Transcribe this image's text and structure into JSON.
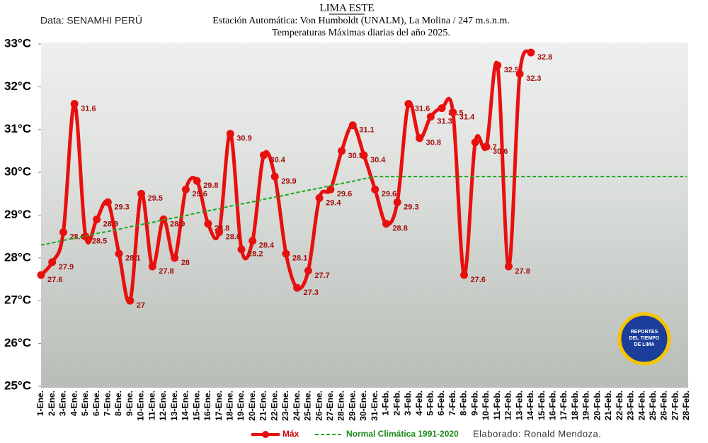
{
  "chart_data": {
    "type": "line",
    "title": "LIMA ESTE",
    "subtitle": [
      "Estación Automática: Von Humboldt (UNALM), La Molina / 247 m.s.n.m.",
      "Temperaturas Máximas diarias del año 2025."
    ],
    "source": "Data: SENAMHI PERÚ",
    "credit": "Elaborado: Ronald Mendoza.",
    "logo": [
      "REPORTES",
      "DEL TIEMPO",
      "DE LIMA"
    ],
    "categories": [
      "1-Ene.",
      "2-Ene.",
      "3-Ene.",
      "4-Ene.",
      "5-Ene.",
      "6-Ene.",
      "7-Ene.",
      "8-Ene.",
      "9-Ene.",
      "10-Ene.",
      "11-Ene.",
      "12-Ene.",
      "13-Ene.",
      "14-Ene.",
      "15-Ene.",
      "16-Ene.",
      "17-Ene.",
      "18-Ene.",
      "19-Ene.",
      "20-Ene.",
      "21-Ene.",
      "22-Ene.",
      "23-Ene.",
      "24-Ene.",
      "25-Ene.",
      "26-Ene.",
      "27-Ene.",
      "28-Ene.",
      "29-Ene.",
      "30-Ene.",
      "31-Ene.",
      "1-Feb.",
      "2-Feb.",
      "3-Feb.",
      "4-Feb.",
      "5-Feb.",
      "6-Feb.",
      "7-Feb.",
      "8-Feb.",
      "9-Feb.",
      "10-Feb.",
      "11-Feb.",
      "12-Feb.",
      "13-Feb.",
      "14-Feb.",
      "15-Feb.",
      "16-Feb.",
      "17-Feb.",
      "18-Feb.",
      "19-Feb.",
      "20-Feb.",
      "21-Feb.",
      "22-Feb.",
      "23-Feb.",
      "24-Feb.",
      "25-Feb.",
      "26-Feb.",
      "27-Feb.",
      "28-Feb."
    ],
    "series": [
      {
        "name": "Máx",
        "color": "#e8100f",
        "markers": true,
        "data_labels": true,
        "values": [
          27.6,
          27.9,
          28.6,
          31.6,
          28.5,
          28.9,
          29.3,
          28.1,
          27,
          29.5,
          27.8,
          28.9,
          28,
          29.6,
          29.8,
          28.8,
          28.6,
          30.9,
          28.2,
          28.4,
          30.4,
          29.9,
          28.1,
          27.3,
          27.7,
          29.4,
          29.6,
          30.5,
          31.1,
          30.4,
          29.6,
          28.8,
          29.3,
          31.6,
          30.8,
          31.3,
          31.5,
          31.4,
          27.6,
          30.7,
          30.6,
          32.5,
          27.8,
          32.3,
          32.8,
          null,
          null,
          null,
          null,
          null,
          null,
          null,
          null,
          null,
          null,
          null,
          null,
          null,
          null
        ]
      },
      {
        "name": "Normal Climática 1991-2020",
        "color": "#1aa81a",
        "dashed": true,
        "markers": false,
        "data_labels": false,
        "values": [
          28.3,
          28.35,
          28.41,
          28.46,
          28.51,
          28.57,
          28.62,
          28.67,
          28.73,
          28.78,
          28.83,
          28.89,
          28.94,
          28.99,
          29.05,
          29.1,
          29.15,
          29.21,
          29.26,
          29.31,
          29.37,
          29.42,
          29.47,
          29.53,
          29.58,
          29.63,
          29.69,
          29.74,
          29.79,
          29.85,
          29.9,
          29.9,
          29.9,
          29.9,
          29.9,
          29.9,
          29.9,
          29.9,
          29.9,
          29.9,
          29.9,
          29.9,
          29.9,
          29.9,
          29.9,
          29.9,
          29.9,
          29.9,
          29.9,
          29.9,
          29.9,
          29.9,
          29.9,
          29.9,
          29.9,
          29.9,
          29.9,
          29.9,
          29.9
        ]
      }
    ],
    "ylim": [
      25,
      33
    ],
    "yticks": [
      {
        "value": 25,
        "label": "25°C"
      },
      {
        "value": 26,
        "label": "26°C"
      },
      {
        "value": 27,
        "label": "27°C"
      },
      {
        "value": 28,
        "label": "28°C"
      },
      {
        "value": 29,
        "label": "29°C"
      },
      {
        "value": 30,
        "label": "30°C"
      },
      {
        "value": 31,
        "label": "31°C"
      },
      {
        "value": 32,
        "label": "32°C"
      },
      {
        "value": 33,
        "label": "33°C"
      }
    ],
    "grid": false,
    "legend": "bottom"
  }
}
